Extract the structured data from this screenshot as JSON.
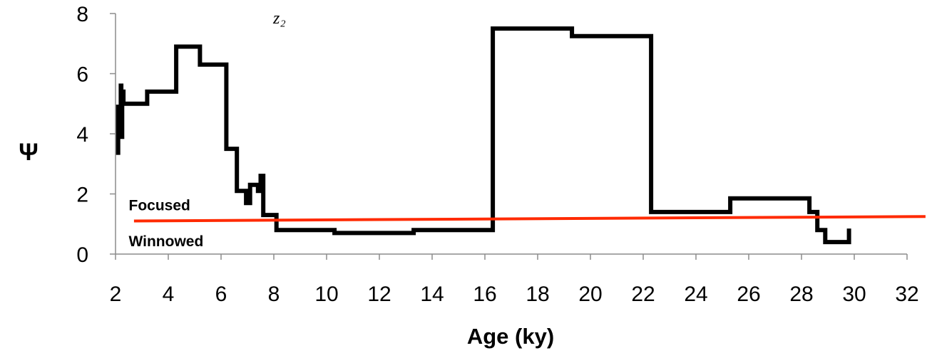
{
  "chart_data": {
    "type": "line",
    "step": true,
    "xlabel": "Age (ky)",
    "ylabel": "Ψ",
    "xlim": [
      2,
      32
    ],
    "ylim": [
      0,
      8
    ],
    "xticks": [
      "2",
      "4",
      "6",
      "8",
      "10",
      "12",
      "14",
      "16",
      "18",
      "20",
      "22",
      "24",
      "26",
      "28",
      "30",
      "32"
    ],
    "yticks": [
      "0",
      "2",
      "4",
      "6",
      "8"
    ],
    "grid": false,
    "corner_label": "z₂",
    "series": [
      {
        "color": "#000000",
        "points": [
          [
            2.1,
            3.3
          ],
          [
            2.1,
            4.9
          ],
          [
            2.15,
            4.9
          ],
          [
            2.15,
            4.7
          ],
          [
            2.2,
            4.7
          ],
          [
            2.2,
            5.6
          ],
          [
            2.22,
            5.6
          ],
          [
            2.22,
            3.9
          ],
          [
            2.25,
            3.9
          ],
          [
            2.25,
            5.4
          ],
          [
            2.3,
            5.4
          ],
          [
            2.3,
            5.0
          ],
          [
            3.2,
            5.0
          ],
          [
            3.2,
            5.4
          ],
          [
            4.3,
            5.4
          ],
          [
            4.3,
            6.9
          ],
          [
            5.2,
            6.9
          ],
          [
            5.2,
            6.3
          ],
          [
            6.2,
            6.3
          ],
          [
            6.2,
            3.5
          ],
          [
            6.6,
            3.5
          ],
          [
            6.6,
            2.1
          ],
          [
            6.95,
            2.1
          ],
          [
            6.95,
            1.7
          ],
          [
            7.1,
            1.7
          ],
          [
            7.1,
            2.3
          ],
          [
            7.4,
            2.3
          ],
          [
            7.4,
            2.1
          ],
          [
            7.5,
            2.1
          ],
          [
            7.5,
            2.6
          ],
          [
            7.6,
            2.6
          ],
          [
            7.6,
            1.3
          ],
          [
            8.1,
            1.3
          ],
          [
            8.1,
            0.8
          ],
          [
            10.3,
            0.8
          ],
          [
            10.3,
            0.7
          ],
          [
            13.3,
            0.7
          ],
          [
            13.3,
            0.8
          ],
          [
            16.3,
            0.8
          ],
          [
            16.3,
            7.5
          ],
          [
            19.3,
            7.5
          ],
          [
            19.3,
            7.25
          ],
          [
            22.3,
            7.25
          ],
          [
            22.3,
            1.4
          ],
          [
            25.3,
            1.4
          ],
          [
            25.3,
            1.85
          ],
          [
            28.3,
            1.85
          ],
          [
            28.3,
            1.4
          ],
          [
            28.6,
            1.4
          ],
          [
            28.6,
            0.8
          ],
          [
            28.9,
            0.8
          ],
          [
            28.9,
            0.4
          ],
          [
            29.8,
            0.4
          ],
          [
            29.8,
            0.85
          ]
        ]
      },
      {
        "color": "#ff2a00",
        "points": [
          [
            2.7,
            1.1
          ],
          [
            32.7,
            1.25
          ]
        ]
      }
    ],
    "annotations": [
      {
        "text": "Focused",
        "x": 2.5,
        "y": 1.65
      },
      {
        "text": "Winnowed",
        "x": 2.5,
        "y": 0.45
      }
    ]
  }
}
